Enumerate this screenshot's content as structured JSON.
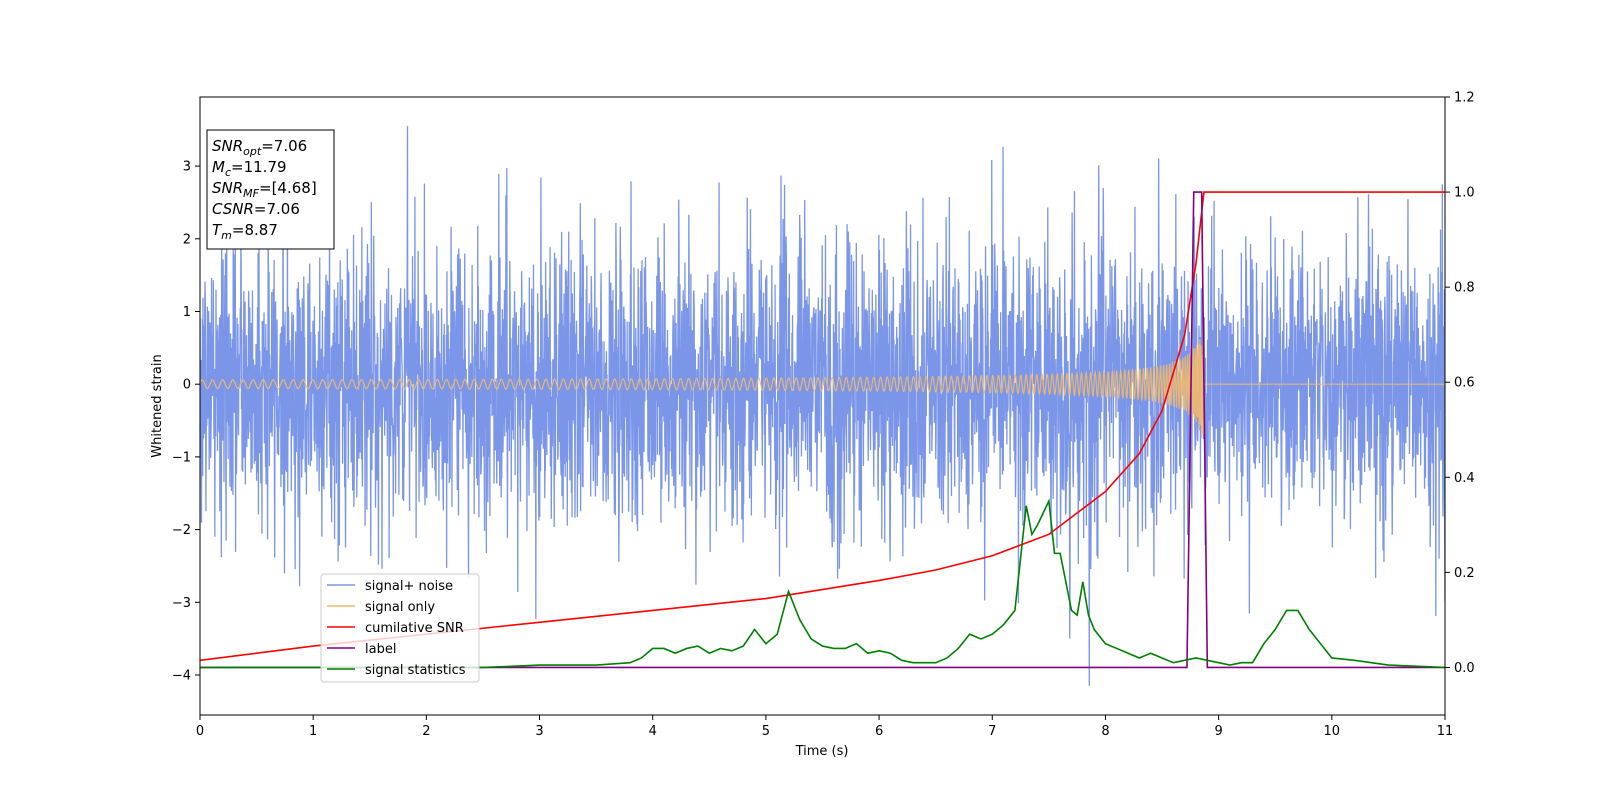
{
  "chart_data": {
    "type": "line",
    "title": "",
    "xlabel": "Time (s)",
    "ylabel": "Whitened strain",
    "xlim": [
      0,
      11
    ],
    "ylim": [
      -4.55,
      3.95
    ],
    "y2lim": [
      -0.1,
      1.2
    ],
    "xticks": [
      0,
      1,
      2,
      3,
      4,
      5,
      6,
      7,
      8,
      9,
      10,
      11
    ],
    "yticks": [
      3,
      2,
      1,
      0,
      -1,
      -2,
      -3,
      -4
    ],
    "y2ticks": [
      1.2,
      1.0,
      0.8,
      0.6,
      0.4,
      0.2,
      0.0
    ],
    "grid": false,
    "legend_position": "lower-left",
    "info_box": [
      {
        "name": "SNR",
        "sub": "opt",
        "value": "=7.06"
      },
      {
        "name": "M",
        "sub": "c",
        "value": "=11.79"
      },
      {
        "name": "SNR",
        "sub": "MF",
        "value": "=[4.68]"
      },
      {
        "name": "CSNR",
        "sub": "",
        "value": "=7.06"
      },
      {
        "name": "T",
        "sub": "m",
        "value": "=8.87"
      }
    ],
    "series": [
      {
        "name": "signal+ noise",
        "axis": "left",
        "color": "#7b96e8",
        "kind": "noise",
        "t_range": [
          0,
          11
        ],
        "typical_amplitude": 1.2,
        "peak_extremes": [
          3.55,
          -4.15
        ]
      },
      {
        "name": "signal only",
        "axis": "left",
        "color": "#f2b96b",
        "kind": "chirp",
        "t_range": [
          0,
          8.87
        ],
        "start_amplitude": 0.02,
        "end_amplitude": 0.9,
        "merger_time": 8.87
      },
      {
        "name": "cumilative SNR",
        "axis": "right",
        "color": "#ff0000",
        "x": [
          0,
          0.5,
          1,
          2,
          3,
          4,
          5,
          6,
          6.5,
          7,
          7.5,
          8,
          8.3,
          8.5,
          8.7,
          8.8,
          8.87,
          8.9,
          11
        ],
        "y": [
          0.015,
          0.03,
          0.045,
          0.07,
          0.095,
          0.12,
          0.145,
          0.183,
          0.205,
          0.235,
          0.28,
          0.37,
          0.45,
          0.54,
          0.7,
          0.85,
          1.0,
          1.0,
          1.0
        ]
      },
      {
        "name": "label",
        "axis": "right",
        "color": "#800080",
        "x": [
          0,
          8.72,
          8.78,
          8.85,
          8.9,
          11
        ],
        "y": [
          0,
          0,
          1,
          1,
          0,
          0
        ]
      },
      {
        "name": "signal statistics",
        "axis": "right",
        "color": "#008000",
        "x": [
          0,
          1,
          2,
          2.5,
          3,
          3.5,
          3.8,
          3.9,
          4,
          4.1,
          4.2,
          4.3,
          4.4,
          4.5,
          4.6,
          4.7,
          4.8,
          4.9,
          5.0,
          5.1,
          5.2,
          5.3,
          5.4,
          5.5,
          5.6,
          5.7,
          5.8,
          5.9,
          6.0,
          6.1,
          6.2,
          6.3,
          6.5,
          6.6,
          6.7,
          6.8,
          6.9,
          7.0,
          7.1,
          7.2,
          7.3,
          7.35,
          7.4,
          7.5,
          7.55,
          7.6,
          7.7,
          7.75,
          7.8,
          7.85,
          7.9,
          8.0,
          8.1,
          8.2,
          8.3,
          8.4,
          8.5,
          8.6,
          8.7,
          8.8,
          8.9,
          9.0,
          9.1,
          9.2,
          9.3,
          9.4,
          9.5,
          9.6,
          9.7,
          9.8,
          9.9,
          10.0,
          10.2,
          10.5,
          11
        ],
        "y": [
          0.0,
          0.0,
          0.0,
          0.0,
          0.005,
          0.005,
          0.01,
          0.02,
          0.04,
          0.04,
          0.03,
          0.04,
          0.045,
          0.03,
          0.04,
          0.035,
          0.045,
          0.08,
          0.05,
          0.07,
          0.16,
          0.1,
          0.06,
          0.045,
          0.04,
          0.04,
          0.05,
          0.03,
          0.035,
          0.03,
          0.015,
          0.01,
          0.01,
          0.02,
          0.04,
          0.07,
          0.06,
          0.07,
          0.09,
          0.12,
          0.34,
          0.28,
          0.3,
          0.35,
          0.24,
          0.24,
          0.12,
          0.11,
          0.18,
          0.11,
          0.08,
          0.05,
          0.04,
          0.03,
          0.02,
          0.03,
          0.02,
          0.01,
          0.015,
          0.02,
          0.015,
          0.01,
          0.005,
          0.01,
          0.01,
          0.05,
          0.08,
          0.12,
          0.12,
          0.08,
          0.05,
          0.02,
          0.015,
          0.005,
          0.0
        ]
      }
    ]
  }
}
